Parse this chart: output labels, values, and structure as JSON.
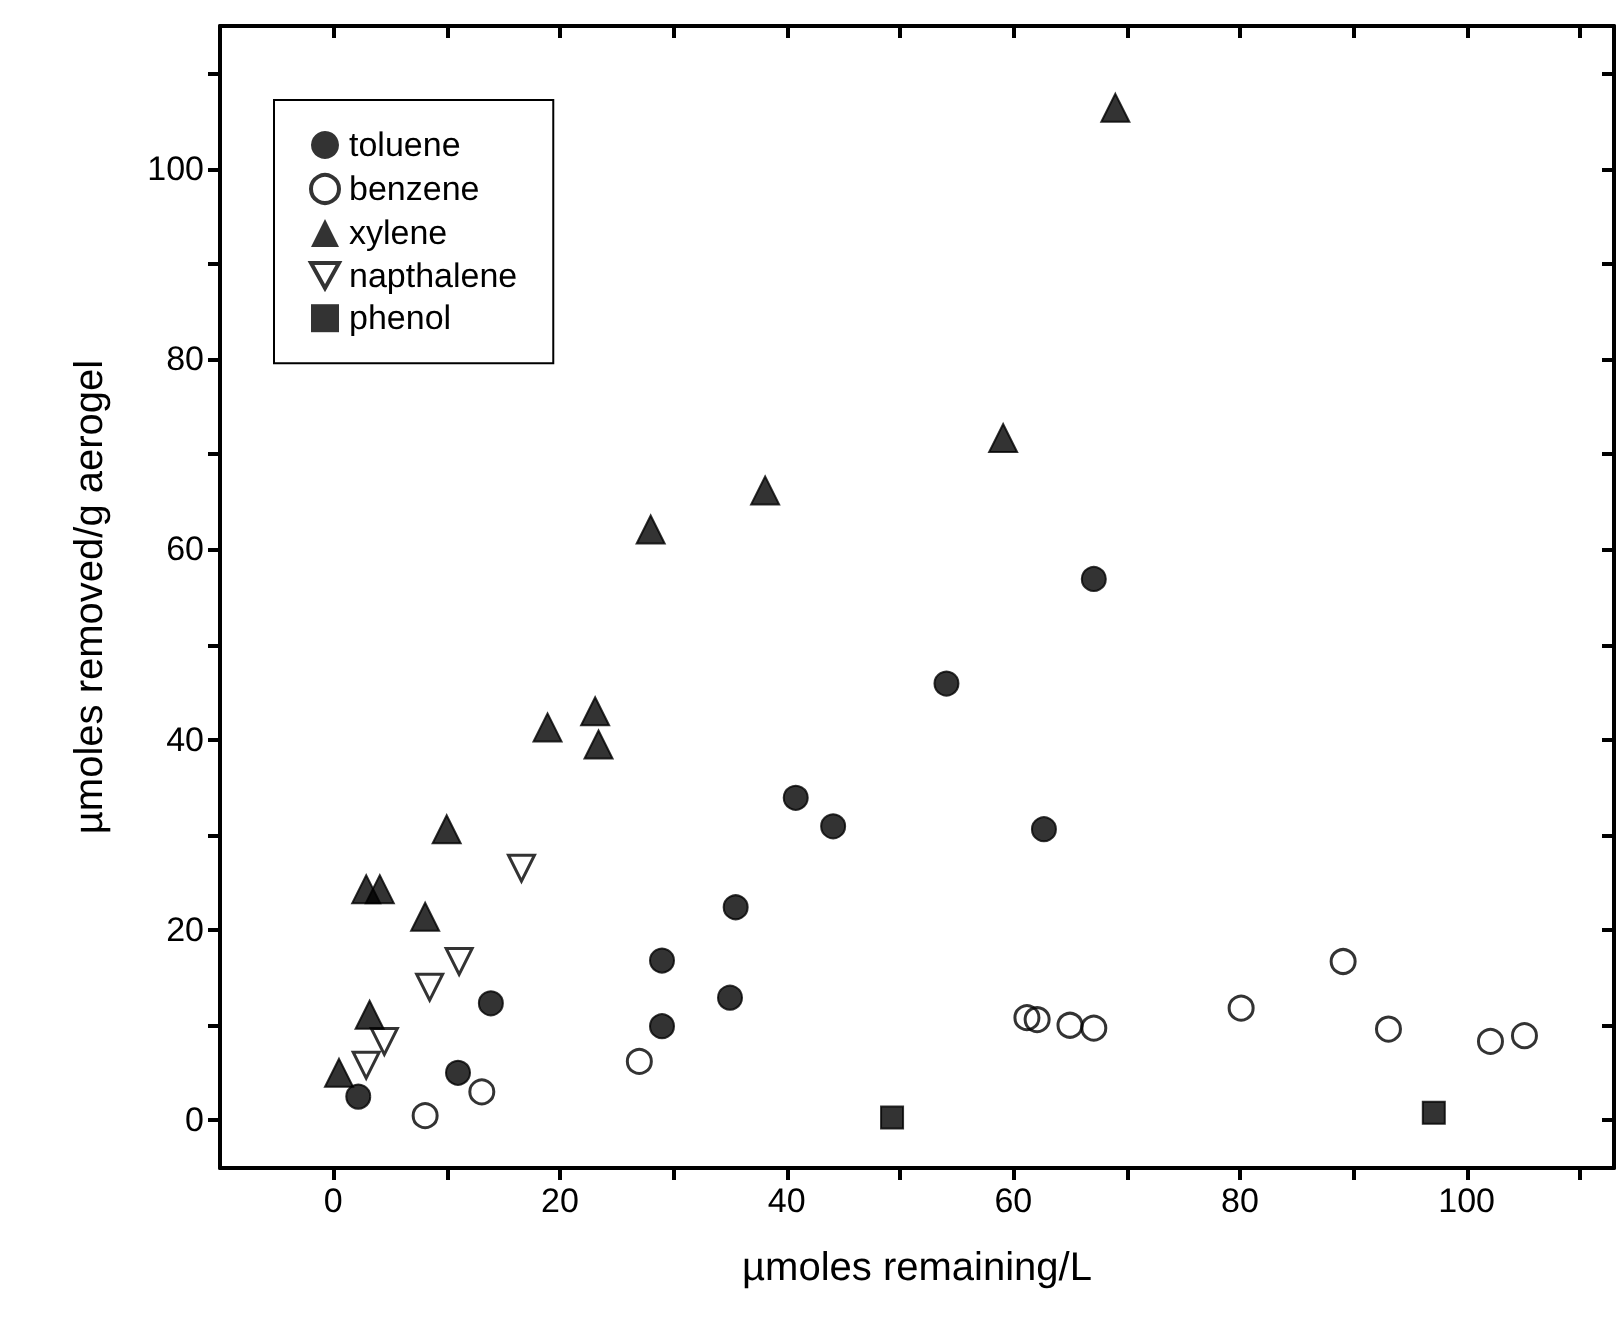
{
  "chart_data": {
    "type": "scatter",
    "xlabel": "µmoles remaining/L",
    "ylabel": "µmoles removed/g aerogel",
    "xlim": [
      -10,
      113
    ],
    "ylim": [
      -5,
      115
    ],
    "xticks": [
      0,
      {
        "value": 10,
        "label": null
      },
      20,
      {
        "value": 30,
        "label": null
      },
      40,
      {
        "value": 50,
        "label": null
      },
      60,
      {
        "value": 70,
        "label": null
      },
      80,
      {
        "value": 90,
        "label": null
      },
      100,
      {
        "value": 110,
        "label": null
      }
    ],
    "yticks": [
      0,
      {
        "value": 10,
        "label": null
      },
      20,
      {
        "value": 30,
        "label": null
      },
      40,
      {
        "value": 50,
        "label": null
      },
      60,
      {
        "value": 70,
        "label": null
      },
      80,
      {
        "value": 90,
        "label": null
      },
      100,
      {
        "value": 110,
        "label": null
      }
    ],
    "grid": false,
    "legend": "top left",
    "series": [
      {
        "name": "toluene",
        "color": "#000000",
        "marker": "circle",
        "x": [
          2.2,
          11,
          13.9,
          29,
          29,
          35,
          35.5,
          40.8,
          44.1,
          54.1,
          62.7,
          67.1
        ],
        "values": [
          2.5,
          5,
          12.3,
          9.9,
          16.8,
          12.9,
          22.4,
          33.9,
          30.9,
          45.9,
          30.6,
          56.9
        ]
      },
      {
        "name": "benzene",
        "color": "#000000",
        "marker": "circle-open",
        "x": [
          8.1,
          13.1,
          27,
          61.2,
          62.1,
          65,
          67.1,
          80.1,
          89.1,
          93.1,
          102.1,
          105.1
        ],
        "values": [
          0.5,
          3,
          6.2,
          10.8,
          10.6,
          10,
          9.7,
          11.8,
          16.7,
          9.6,
          8.3,
          8.9
        ]
      },
      {
        "name": "xylene",
        "color": "#000000",
        "marker": "triangle",
        "x": [
          0.5,
          3.2,
          2.9,
          4.1,
          8.1,
          10,
          18.9,
          23.1,
          23.4,
          28,
          38.1,
          59.1,
          69
        ],
        "values": [
          5,
          11.1,
          24.3,
          24.3,
          21.4,
          30.6,
          41.3,
          43,
          39.5,
          62.1,
          66.2,
          71.7,
          106.4
        ]
      },
      {
        "name": "napthalene",
        "color": "#000000",
        "marker": "triangle-down-open",
        "x": [
          2.9,
          4.5,
          8.5,
          11.1,
          16.6
        ],
        "values": [
          5.8,
          8.3,
          14,
          16.7,
          26.5
        ]
      },
      {
        "name": "phenol",
        "color": "#000000",
        "marker": "square",
        "x": [
          49.3,
          97.1
        ],
        "values": [
          0.3,
          0.8
        ]
      }
    ]
  }
}
